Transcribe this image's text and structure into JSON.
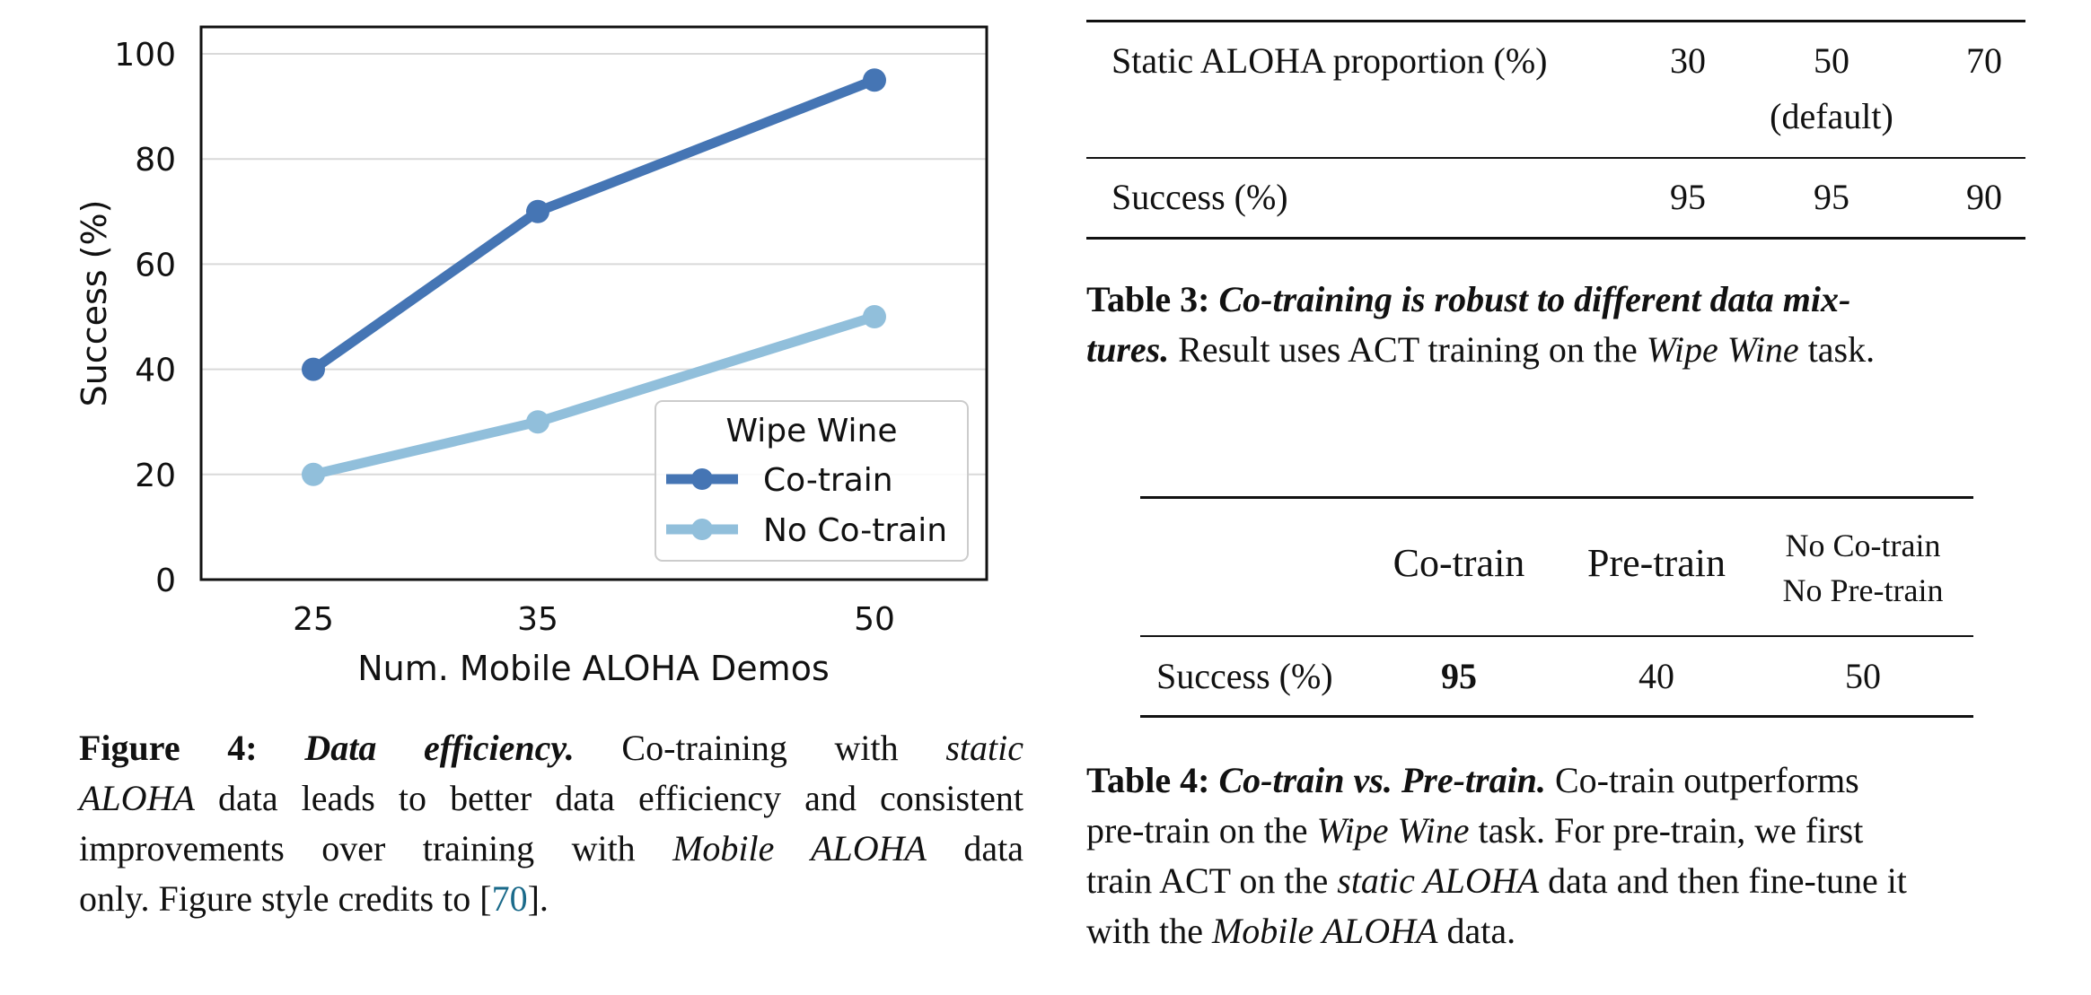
{
  "figure4": {
    "chart_data": {
      "type": "line",
      "x": [
        25,
        35,
        50
      ],
      "xticks": [
        "25",
        "35",
        "50"
      ],
      "xlabel": "Num. Mobile ALOHA Demos",
      "ylabel": "Success (%)",
      "ylim": [
        0,
        100
      ],
      "yticks": [
        "0",
        "20",
        "40",
        "60",
        "80",
        "100"
      ],
      "grid": "horizontal",
      "legend": {
        "title": "Wipe Wine",
        "placement": "lower-right"
      },
      "series": [
        {
          "name": "Co-train",
          "values": [
            40,
            70,
            95
          ],
          "color": "#4575b4"
        },
        {
          "name": "No Co-train",
          "values": [
            20,
            30,
            50
          ],
          "color": "#91bfdb"
        }
      ]
    },
    "caption": {
      "label": "Figure 4:",
      "title": "Data efficiency.",
      "line1_a": "Co-training with",
      "line1_b": "static",
      "line2_a": "ALOHA",
      "line2_b": "data leads to better data efficiency and consistent",
      "line3_a": "improvements over training with",
      "line3_b": "Mobile ALOHA",
      "line3_c": "data",
      "line4_a": "only. Figure style credits to [",
      "line4_cite": "70",
      "line4_b": "]."
    }
  },
  "table3": {
    "header": {
      "label": "Static ALOHA proportion (%)",
      "col1": "30",
      "col2": "50",
      "col2_sub": "(default)",
      "col3": "70"
    },
    "row": {
      "label": "Success (%)",
      "col1": "95",
      "col2": "95",
      "col3": "90"
    },
    "caption": {
      "label": "Table 3:",
      "title_a": "Co-training is robust to different data mix-",
      "title_b": "tures.",
      "text_a": "Result uses ACT training on the",
      "text_italic": "Wipe Wine",
      "text_b": "task."
    }
  },
  "table4": {
    "header": {
      "col1": "Co-train",
      "col2": "Pre-train",
      "col3_line1": "No Co-train",
      "col3_line2": "No Pre-train"
    },
    "row": {
      "label": "Success (%)",
      "col1": "95",
      "col2": "40",
      "col3": "50"
    },
    "caption": {
      "label": "Table 4:",
      "title": "Co-train vs. Pre-train.",
      "line1_b": "Co-train outperforms",
      "line2_a": "pre-train on the",
      "line2_i": "Wipe Wine",
      "line2_b": "task. For pre-train, we first",
      "line3_a": "train ACT on the",
      "line3_i": "static ALOHA",
      "line3_b": "data and then fine-tune it",
      "line4_a": "with the",
      "line4_i": "Mobile ALOHA",
      "line4_b": "data."
    }
  }
}
